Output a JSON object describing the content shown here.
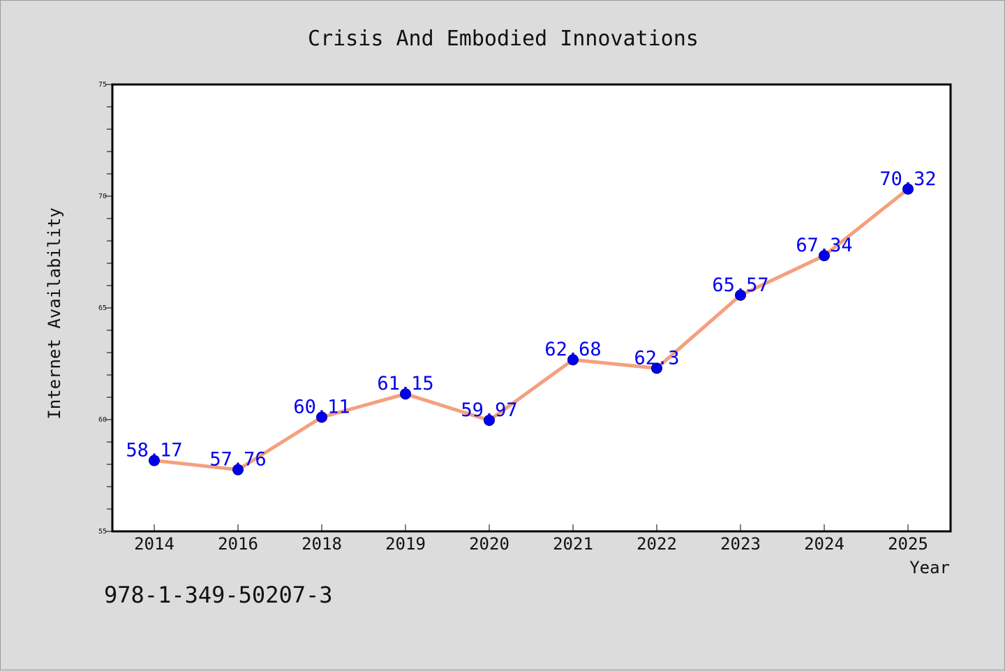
{
  "chart_data": {
    "type": "line",
    "title": "Crisis And Embodied Innovations",
    "xlabel": "Year",
    "ylabel": "Internet Availability",
    "categories": [
      "2014",
      "2016",
      "2018",
      "2019",
      "2020",
      "2021",
      "2022",
      "2023",
      "2024",
      "2025"
    ],
    "values": [
      58.17,
      57.76,
      60.11,
      61.15,
      59.97,
      62.68,
      62.3,
      65.57,
      67.34,
      70.32
    ],
    "value_labels": [
      "58.17",
      "57.76",
      "60.11",
      "61.15",
      "59.97",
      "62.68",
      "62.3",
      "65.57",
      "67.34",
      "70.32"
    ],
    "ylim": [
      55,
      75
    ],
    "yticks": [
      "55",
      "60",
      "65",
      "70",
      "75"
    ],
    "grid": false,
    "legend": "none",
    "colors": {
      "line": "#f4a07e",
      "marker": "#0000ee",
      "label": "#0000ee",
      "axes": "#000000"
    }
  },
  "footer": {
    "code": "978-1-349-50207-3"
  }
}
